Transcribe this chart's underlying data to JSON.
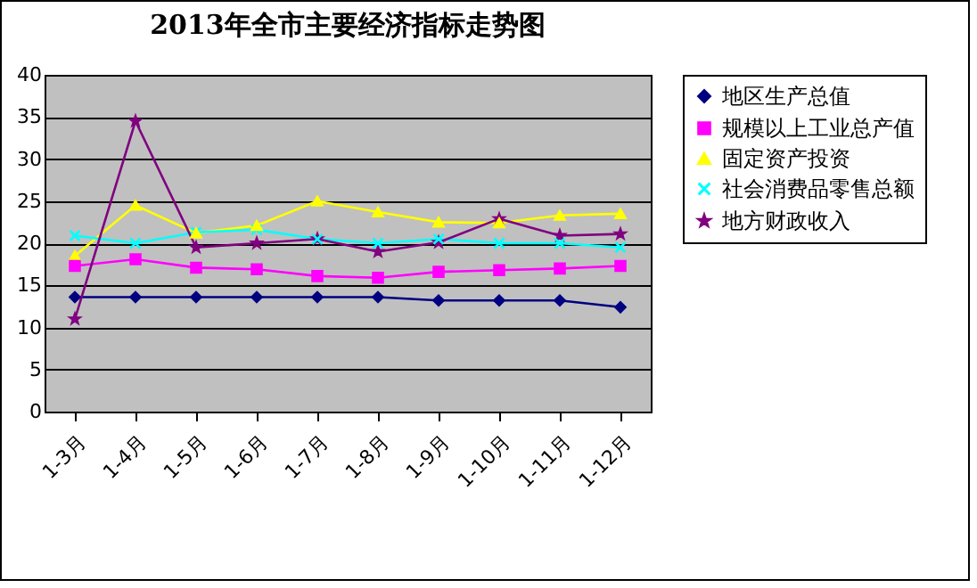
{
  "chart_data": {
    "type": "line",
    "title": "2013年全市主要经济指标走势图",
    "categories": [
      "1-3月",
      "1-4月",
      "1-5月",
      "1-6月",
      "1-7月",
      "1-8月",
      "1-9月",
      "1-10月",
      "1-11月",
      "1-12月"
    ],
    "series": [
      {
        "name": "地区生产总值",
        "color": "#000080",
        "marker": "diamond",
        "values": [
          13.6,
          13.6,
          13.6,
          13.6,
          13.6,
          13.6,
          13.2,
          13.2,
          13.2,
          12.4
        ]
      },
      {
        "name": "规模以上工业总产值",
        "color": "#ff00ff",
        "marker": "square",
        "values": [
          17.3,
          18.1,
          17.1,
          16.9,
          16.1,
          15.9,
          16.6,
          16.8,
          17.0,
          17.3
        ]
      },
      {
        "name": "固定资产投资",
        "color": "#ffff00",
        "marker": "triangle",
        "values": [
          18.5,
          24.5,
          21.2,
          22.1,
          25.0,
          23.7,
          22.5,
          22.4,
          23.3,
          23.5
        ]
      },
      {
        "name": "社会消费品零售总额",
        "color": "#00ffff",
        "marker": "cross",
        "values": [
          20.9,
          20.0,
          21.3,
          21.6,
          20.5,
          20.0,
          20.5,
          20.0,
          20.0,
          19.5
        ]
      },
      {
        "name": "地方财政收入",
        "color": "#800080",
        "marker": "star",
        "values": [
          11.0,
          34.5,
          19.5,
          20.0,
          20.5,
          19.0,
          20.1,
          22.9,
          20.9,
          21.1
        ]
      }
    ],
    "ylim": [
      0,
      40
    ],
    "yticks": [
      0,
      5,
      10,
      15,
      20,
      25,
      30,
      35,
      40
    ],
    "grid": "y",
    "legend": "right"
  }
}
